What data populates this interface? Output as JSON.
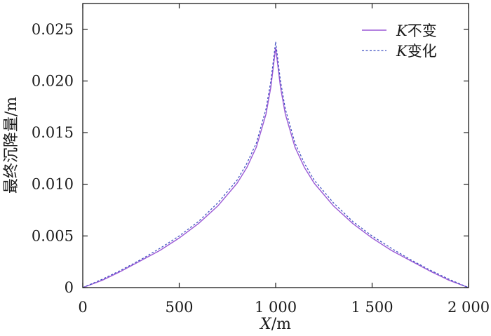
{
  "chart_data": {
    "type": "line",
    "xlabel_var": "X",
    "xlabel_unit": "/m",
    "ylabel": "最终沉降量/m",
    "xlim": [
      0,
      2000
    ],
    "ylim": [
      0,
      0.0275
    ],
    "xticks": [
      0,
      500,
      1000,
      1500,
      2000
    ],
    "xtick_labels": [
      "0",
      "500",
      "1 000",
      "1 500",
      "2 000"
    ],
    "yticks": [
      0,
      0.005,
      0.01,
      0.015,
      0.02,
      0.025
    ],
    "ytick_labels": [
      "0",
      "0.005",
      "0.010",
      "0.015",
      "0.020",
      "0.025"
    ],
    "grid": false,
    "legend_position": "top-right",
    "series": [
      {
        "name_var": "K",
        "name_text": "不变",
        "color": "#9b59d6",
        "style": "solid",
        "x": [
          0,
          100,
          200,
          300,
          400,
          500,
          600,
          700,
          800,
          850,
          900,
          950,
          975,
          1000,
          1025,
          1050,
          1100,
          1150,
          1200,
          1300,
          1400,
          1500,
          1600,
          1700,
          1800,
          1900,
          2000
        ],
        "y": [
          0,
          0.0007,
          0.0016,
          0.0026,
          0.0036,
          0.0048,
          0.0062,
          0.0079,
          0.0101,
          0.0116,
          0.0136,
          0.0168,
          0.0194,
          0.0232,
          0.0194,
          0.0168,
          0.0136,
          0.0116,
          0.0101,
          0.0079,
          0.0062,
          0.0048,
          0.0036,
          0.0026,
          0.0016,
          0.0007,
          0
        ]
      },
      {
        "name_var": "K",
        "name_text": "变化",
        "color": "#3b4cc0",
        "style": "dashed",
        "x": [
          0,
          100,
          200,
          300,
          400,
          500,
          600,
          700,
          800,
          850,
          900,
          950,
          975,
          1000,
          1025,
          1050,
          1100,
          1150,
          1200,
          1300,
          1400,
          1500,
          1600,
          1700,
          1800,
          1900,
          2000
        ],
        "y": [
          0,
          0.0008,
          0.0017,
          0.0027,
          0.0038,
          0.005,
          0.0064,
          0.0082,
          0.0104,
          0.012,
          0.014,
          0.0173,
          0.02,
          0.0238,
          0.02,
          0.0173,
          0.014,
          0.012,
          0.0104,
          0.0082,
          0.0064,
          0.005,
          0.0038,
          0.0027,
          0.0017,
          0.0008,
          0
        ]
      }
    ]
  }
}
